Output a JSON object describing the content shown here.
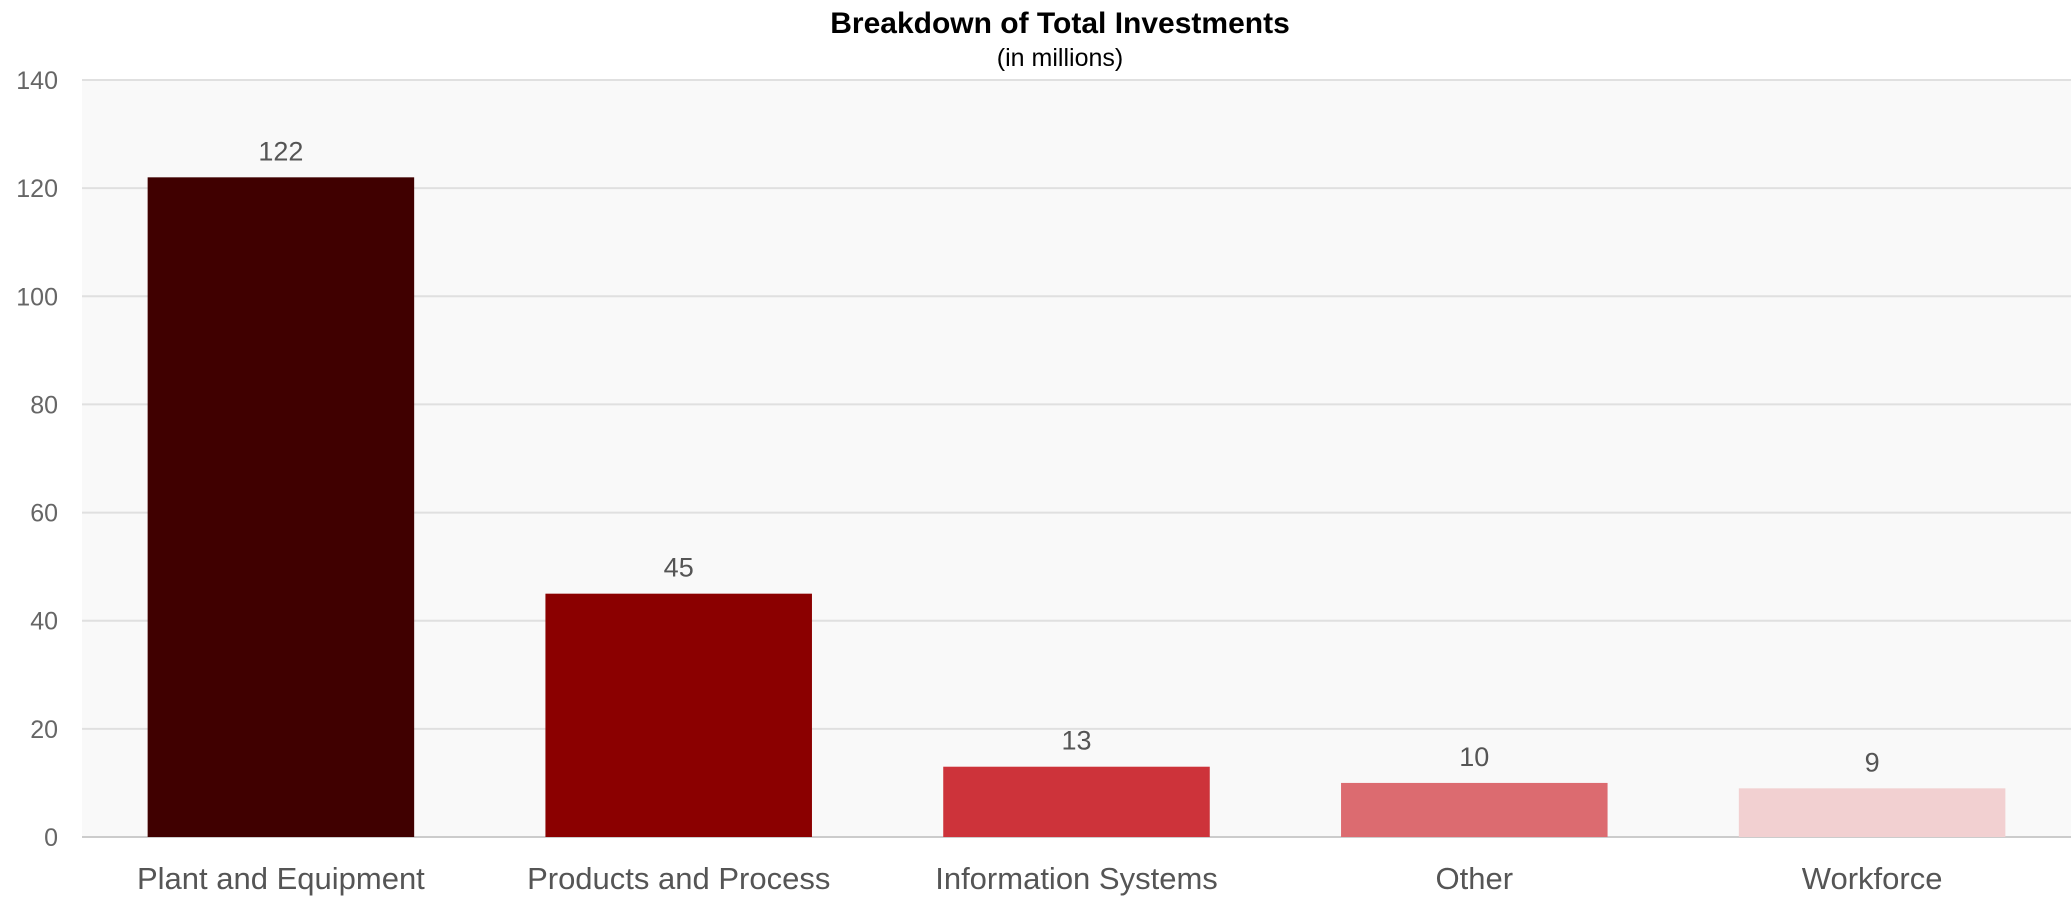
{
  "chart_data": {
    "type": "bar",
    "title": "Breakdown of Total Investments",
    "subtitle": "(in millions)",
    "xlabel": "",
    "ylabel": "",
    "categories": [
      "Plant and Equipment",
      "Products and Process",
      "Information Systems",
      "Other",
      "Workforce"
    ],
    "values": [
      122,
      45,
      13,
      10,
      9
    ],
    "data_labels": [
      "122",
      "45",
      "13",
      "10",
      "9"
    ],
    "colors": [
      "#400000",
      "#8b0000",
      "#cd333a",
      "#dc6b70",
      "#f2d0d1"
    ],
    "ylim": [
      0,
      140
    ],
    "yticks": [
      0,
      20,
      40,
      60,
      80,
      100,
      120,
      140
    ],
    "grid": true,
    "legend": "none",
    "plot_background": "#f9f9f9"
  }
}
